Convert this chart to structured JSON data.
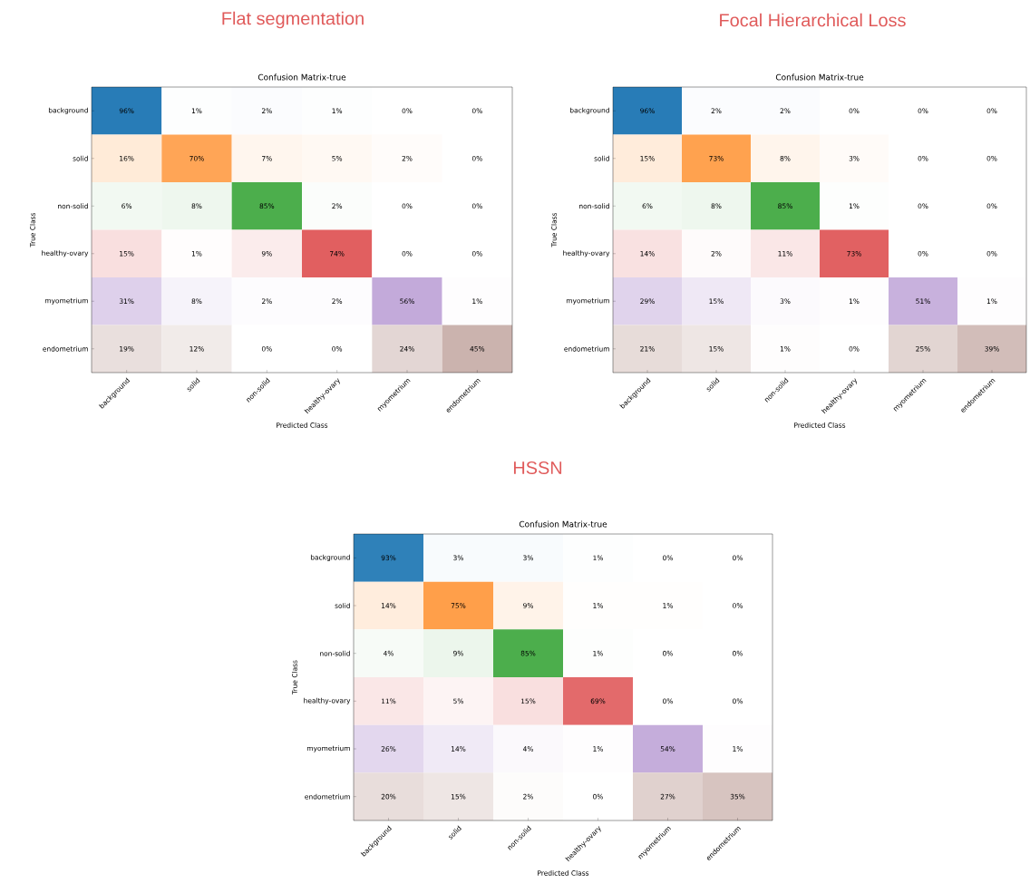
{
  "chart_data": [
    {
      "type": "heatmap",
      "title": "Flat segmentation",
      "subtitle": "Confusion Matrix-true",
      "xlabel": "Predicted Class",
      "ylabel": "True Class",
      "categories": [
        "background",
        "solid",
        "non-solid",
        "healthy-ovary",
        "myometrium",
        "endometrium"
      ],
      "y_categories": [
        "background",
        "solid",
        "non-solid",
        "healthy-ovary",
        "myometrium",
        "endometrium"
      ],
      "colors": [
        "#1f77b4",
        "#ff7f0e",
        "#2ca02c",
        "#d62728",
        "#9467bd",
        "#8c564b"
      ],
      "cells": [
        [
          96,
          1,
          2,
          1,
          0,
          0
        ],
        [
          16,
          70,
          7,
          5,
          2,
          0
        ],
        [
          6,
          8,
          85,
          2,
          0,
          0
        ],
        [
          15,
          1,
          9,
          74,
          0,
          0
        ],
        [
          31,
          8,
          2,
          2,
          56,
          1
        ],
        [
          19,
          12,
          0,
          0,
          24,
          45
        ]
      ],
      "cell_labels": [
        [
          "96%",
          "1%",
          "2%",
          "1%",
          "0%",
          "0%"
        ],
        [
          "16%",
          "70%",
          "7%",
          "5%",
          "2%",
          "0%"
        ],
        [
          "6%",
          "8%",
          "85%",
          "2%",
          "0%",
          "0%"
        ],
        [
          "15%",
          "1%",
          "9%",
          "74%",
          "0%",
          "0%"
        ],
        [
          "31%",
          "8%",
          "2%",
          "2%",
          "56%",
          "1%"
        ],
        [
          "19%",
          "12%",
          "0%",
          "0%",
          "24%",
          "45%"
        ]
      ]
    },
    {
      "type": "heatmap",
      "title": "Focal Hierarchical Loss",
      "subtitle": "Confusion Matrix-true",
      "xlabel": "Predicted Class",
      "ylabel": "True Class",
      "categories": [
        "background",
        "solid",
        "non-solid",
        "healthy-ovary",
        "myometrium",
        "endometrium"
      ],
      "y_categories": [
        "background",
        "solid",
        "non-solid",
        "healthy-ovary",
        "myometrium",
        "endometrium"
      ],
      "colors": [
        "#1f77b4",
        "#ff7f0e",
        "#2ca02c",
        "#d62728",
        "#9467bd",
        "#8c564b"
      ],
      "cells": [
        [
          96,
          2,
          2,
          0,
          0,
          0
        ],
        [
          15,
          73,
          8,
          3,
          0,
          0
        ],
        [
          6,
          8,
          85,
          1,
          0,
          0
        ],
        [
          14,
          2,
          11,
          73,
          0,
          0
        ],
        [
          29,
          15,
          3,
          1,
          51,
          1
        ],
        [
          21,
          15,
          1,
          0,
          25,
          39
        ]
      ],
      "cell_labels": [
        [
          "96%",
          "2%",
          "2%",
          "0%",
          "0%",
          "0%"
        ],
        [
          "15%",
          "73%",
          "8%",
          "3%",
          "0%",
          "0%"
        ],
        [
          "6%",
          "8%",
          "85%",
          "1%",
          "0%",
          "0%"
        ],
        [
          "14%",
          "2%",
          "11%",
          "73%",
          "0%",
          "0%"
        ],
        [
          "29%",
          "15%",
          "3%",
          "1%",
          "51%",
          "1%"
        ],
        [
          "21%",
          "15%",
          "1%",
          "0%",
          "25%",
          "39%"
        ]
      ]
    },
    {
      "type": "heatmap",
      "title": "HSSN",
      "subtitle": "Confusion Matrix-true",
      "xlabel": "Predicted Class",
      "ylabel": "True Class",
      "categories": [
        "background",
        "solid",
        "non-solid",
        "healthy-ovary",
        "myometrium",
        "endometrium"
      ],
      "y_categories": [
        "background",
        "solid",
        "non-solid",
        "healthy-ovary",
        "myometrium",
        "endometrium"
      ],
      "colors": [
        "#1f77b4",
        "#ff7f0e",
        "#2ca02c",
        "#d62728",
        "#9467bd",
        "#8c564b"
      ],
      "cells": [
        [
          93,
          3,
          3,
          1,
          0,
          0
        ],
        [
          14,
          75,
          9,
          1,
          1,
          0
        ],
        [
          4,
          9,
          85,
          1,
          0,
          0
        ],
        [
          11,
          5,
          15,
          69,
          0,
          0
        ],
        [
          26,
          14,
          4,
          1,
          54,
          1
        ],
        [
          20,
          15,
          2,
          0,
          27,
          35
        ]
      ],
      "cell_labels": [
        [
          "93%",
          "3%",
          "3%",
          "1%",
          "0%",
          "0%"
        ],
        [
          "14%",
          "75%",
          "9%",
          "1%",
          "1%",
          "0%"
        ],
        [
          "4%",
          "9%",
          "85%",
          "1%",
          "0%",
          "0%"
        ],
        [
          "11%",
          "5%",
          "15%",
          "69%",
          "0%",
          "0%"
        ],
        [
          "26%",
          "14%",
          "4%",
          "1%",
          "54%",
          "1%"
        ],
        [
          "20%",
          "15%",
          "2%",
          "0%",
          "27%",
          "35%"
        ]
      ]
    }
  ]
}
